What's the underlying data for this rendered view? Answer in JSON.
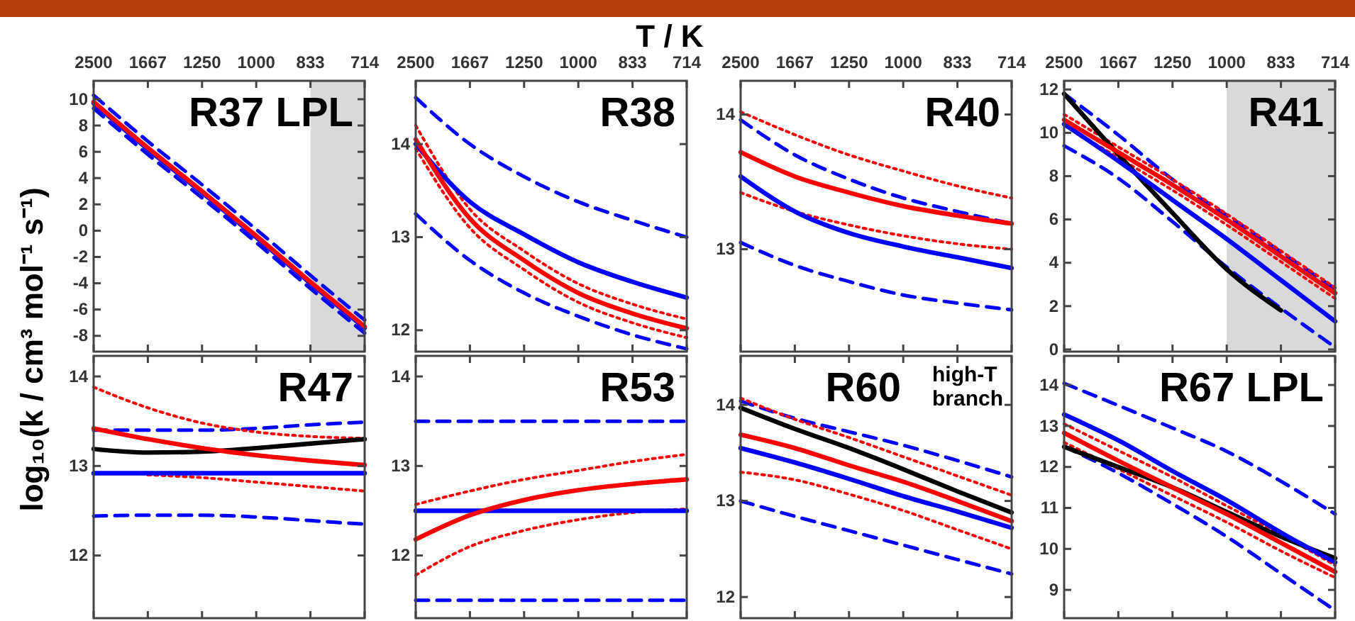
{
  "chart_data": [
    {
      "type": "line",
      "title": "R37 LPL",
      "ylabel": "log₁₀(k / cm³ mol⁻¹ s⁻¹)",
      "categories": [
        "2500",
        "1667",
        "1250",
        "1000",
        "833",
        "714"
      ],
      "ylim": [
        -9.2,
        11.4
      ],
      "yticks": [
        -8,
        -6,
        -4,
        -2,
        0,
        2,
        4,
        6,
        8,
        10
      ],
      "bands": [
        {
          "axis": "x",
          "from": "833",
          "to": "714",
          "color": "#d9d9d9"
        }
      ],
      "series": [
        {
          "color": "#0000ff",
          "line_style": "dashed",
          "values": [
            10.3,
            6.8,
            3.5,
            0.1,
            -3.4,
            -6.8
          ]
        },
        {
          "color": "#0000ff",
          "line_style": "dashed",
          "values": [
            9.3,
            5.8,
            2.5,
            -0.9,
            -4.4,
            -7.8
          ]
        },
        {
          "color": "#0000ff",
          "line_style": "solid",
          "values": [
            9.7,
            6.2,
            2.9,
            -0.5,
            -4.0,
            -7.4
          ]
        },
        {
          "color": "#ff0000",
          "line_style": "solid",
          "values": [
            9.8,
            6.3,
            3.0,
            -0.4,
            -3.9,
            -7.3
          ]
        }
      ]
    },
    {
      "type": "line",
      "title": "R38",
      "xlabel": "T / K",
      "categories": [
        "2500",
        "1667",
        "1250",
        "1000",
        "833",
        "714"
      ],
      "ylim": [
        11.77,
        14.68
      ],
      "yticks": [
        12,
        13,
        14
      ],
      "series": [
        {
          "color": "#0000ff",
          "line_style": "dashed",
          "values": [
            14.5,
            14.0,
            13.65,
            13.38,
            13.18,
            13.0
          ]
        },
        {
          "color": "#0000ff",
          "line_style": "dashed",
          "values": [
            13.25,
            12.75,
            12.4,
            12.15,
            11.95,
            11.8
          ]
        },
        {
          "color": "#ff0000",
          "line_style": "dotted",
          "values": [
            14.2,
            13.3,
            12.85,
            12.5,
            12.28,
            12.12
          ]
        },
        {
          "color": "#ff0000",
          "line_style": "dotted",
          "values": [
            13.95,
            13.1,
            12.65,
            12.3,
            12.08,
            11.92
          ]
        },
        {
          "color": "#0000ff",
          "line_style": "solid",
          "values": [
            14.0,
            13.38,
            13.03,
            12.73,
            12.52,
            12.35
          ]
        },
        {
          "color": "#ff0000",
          "line_style": "solid",
          "values": [
            14.05,
            13.2,
            12.75,
            12.4,
            12.18,
            12.02
          ]
        }
      ]
    },
    {
      "type": "line",
      "title": "R40",
      "categories": [
        "2500",
        "1667",
        "1250",
        "1000",
        "833",
        "714"
      ],
      "ylim": [
        12.24,
        14.25
      ],
      "yticks": [
        13,
        14
      ],
      "series": [
        {
          "color": "#0000ff",
          "line_style": "dashed",
          "values": [
            13.96,
            13.7,
            13.52,
            13.38,
            13.28,
            13.19
          ]
        },
        {
          "color": "#0000ff",
          "line_style": "dashed",
          "values": [
            13.05,
            12.88,
            12.76,
            12.66,
            12.6,
            12.55
          ]
        },
        {
          "color": "#ff0000",
          "line_style": "dotted",
          "values": [
            14.02,
            13.85,
            13.7,
            13.58,
            13.47,
            13.38
          ]
        },
        {
          "color": "#ff0000",
          "line_style": "dotted",
          "values": [
            13.42,
            13.28,
            13.18,
            13.1,
            13.04,
            13.0
          ]
        },
        {
          "color": "#0000ff",
          "line_style": "solid",
          "values": [
            13.54,
            13.28,
            13.12,
            13.02,
            12.94,
            12.86
          ]
        },
        {
          "color": "#ff0000",
          "line_style": "solid",
          "values": [
            13.72,
            13.54,
            13.42,
            13.32,
            13.25,
            13.19
          ]
        }
      ]
    },
    {
      "type": "line",
      "title": "R41",
      "categories": [
        "2500",
        "1667",
        "1250",
        "1000",
        "833",
        "714"
      ],
      "ylim": [
        -0.1,
        12.4
      ],
      "yticks": [
        0,
        2,
        4,
        6,
        8,
        10,
        12
      ],
      "bands": [
        {
          "axis": "x",
          "from": "1000",
          "to": "714",
          "color": "#d9d9d9"
        }
      ],
      "series": [
        {
          "color": "#0000ff",
          "line_style": "dashed",
          "values": [
            11.8,
            9.9,
            7.85,
            6.2,
            4.5,
            2.8
          ]
        },
        {
          "color": "#0000ff",
          "line_style": "dashed",
          "values": [
            9.4,
            7.9,
            5.9,
            3.8,
            1.9,
            0.1
          ]
        },
        {
          "color": "#ff0000",
          "line_style": "dotted",
          "values": [
            10.85,
            9.35,
            7.85,
            6.25,
            4.55,
            2.85
          ]
        },
        {
          "color": "#ff0000",
          "line_style": "dotted",
          "values": [
            10.35,
            8.85,
            7.35,
            5.75,
            4.05,
            2.35
          ]
        },
        {
          "color": "#000000",
          "line_style": "solid",
          "values": [
            11.8,
            9.0,
            6.3,
            3.7,
            1.8,
            null
          ]
        },
        {
          "color": "#0000ff",
          "line_style": "solid",
          "values": [
            10.4,
            8.7,
            6.9,
            5.1,
            3.2,
            1.3
          ]
        },
        {
          "color": "#ff0000",
          "line_style": "solid",
          "values": [
            10.6,
            9.1,
            7.6,
            6.0,
            4.3,
            2.6
          ]
        }
      ]
    },
    {
      "type": "line",
      "title": "R47",
      "tick_labels": "y",
      "categories": [
        "2500",
        "1667",
        "1250",
        "1000",
        "833",
        "714"
      ],
      "ylim": [
        11.3,
        14.23
      ],
      "yticks": [
        12,
        13,
        14
      ],
      "series": [
        {
          "color": "#0000ff",
          "line_style": "dashed",
          "values": [
            13.4,
            13.4,
            13.4,
            13.42,
            13.46,
            13.49
          ]
        },
        {
          "color": "#0000ff",
          "line_style": "dashed",
          "values": [
            12.44,
            12.45,
            12.45,
            12.43,
            12.39,
            12.35
          ]
        },
        {
          "color": "#ff0000",
          "line_style": "dotted",
          "values": [
            13.88,
            13.65,
            13.48,
            13.38,
            13.33,
            13.31
          ]
        },
        {
          "color": "#ff0000",
          "line_style": "dotted",
          "values": [
            null,
            12.9,
            12.87,
            12.82,
            12.77,
            12.72
          ]
        },
        {
          "color": "#000000",
          "line_style": "solid",
          "values": [
            13.19,
            13.15,
            13.16,
            13.2,
            13.25,
            13.3
          ]
        },
        {
          "color": "#0000ff",
          "line_style": "solid",
          "values": [
            12.92,
            12.92,
            12.92,
            12.92,
            12.92,
            12.92
          ]
        },
        {
          "color": "#ff0000",
          "line_style": "solid",
          "values": [
            13.42,
            13.3,
            13.2,
            13.12,
            13.06,
            13.01
          ]
        }
      ]
    },
    {
      "type": "line",
      "title": "R53",
      "tick_labels": "y",
      "categories": [
        "2500",
        "1667",
        "1250",
        "1000",
        "833",
        "714"
      ],
      "ylim": [
        11.3,
        14.23
      ],
      "yticks": [
        12,
        13,
        14
      ],
      "series": [
        {
          "color": "#0000ff",
          "line_style": "dashed",
          "values": [
            13.5,
            13.5,
            13.5,
            13.5,
            13.5,
            13.5
          ]
        },
        {
          "color": "#0000ff",
          "line_style": "dashed",
          "values": [
            11.5,
            11.5,
            11.5,
            11.5,
            11.5,
            11.5
          ]
        },
        {
          "color": "#ff0000",
          "line_style": "dotted",
          "values": [
            12.57,
            12.72,
            12.85,
            12.95,
            13.05,
            13.13
          ]
        },
        {
          "color": "#ff0000",
          "line_style": "dotted",
          "values": [
            11.78,
            12.1,
            12.28,
            12.4,
            12.48,
            12.52
          ]
        },
        {
          "color": "#0000ff",
          "line_style": "solid",
          "values": [
            12.5,
            12.5,
            12.5,
            12.5,
            12.5,
            12.5
          ]
        },
        {
          "color": "#ff0000",
          "line_style": "solid",
          "values": [
            12.18,
            12.45,
            12.62,
            12.73,
            12.8,
            12.85
          ]
        }
      ]
    },
    {
      "type": "line",
      "title": "R60",
      "annotations": [
        "high-T branch"
      ],
      "tick_labels": "y",
      "categories": [
        "2500",
        "1667",
        "1250",
        "1000",
        "833",
        "714"
      ],
      "ylim": [
        11.78,
        14.51
      ],
      "yticks": [
        12,
        13,
        14
      ],
      "series": [
        {
          "color": "#0000ff",
          "line_style": "dashed",
          "values": [
            14.04,
            13.86,
            13.72,
            13.58,
            13.42,
            13.25
          ]
        },
        {
          "color": "#0000ff",
          "line_style": "dashed",
          "values": [
            13.0,
            12.84,
            12.69,
            12.54,
            12.39,
            12.24
          ]
        },
        {
          "color": "#ff0000",
          "line_style": "dotted",
          "values": [
            14.07,
            13.85,
            13.66,
            13.46,
            13.26,
            13.06
          ]
        },
        {
          "color": "#ff0000",
          "line_style": "dotted",
          "values": [
            13.3,
            13.22,
            13.07,
            12.9,
            12.7,
            12.5
          ]
        },
        {
          "color": "#000000",
          "line_style": "solid",
          "values": [
            13.97,
            13.75,
            13.55,
            13.33,
            13.1,
            12.88
          ]
        },
        {
          "color": "#0000ff",
          "line_style": "solid",
          "values": [
            13.55,
            13.4,
            13.23,
            13.05,
            12.89,
            12.72
          ]
        },
        {
          "color": "#ff0000",
          "line_style": "solid",
          "values": [
            13.69,
            13.55,
            13.37,
            13.2,
            13.0,
            12.79
          ]
        }
      ]
    },
    {
      "type": "line",
      "title": "R67 LPL",
      "tick_labels": "y",
      "categories": [
        "2500",
        "1667",
        "1250",
        "1000",
        "833",
        "714"
      ],
      "ylim": [
        8.31,
        14.71
      ],
      "yticks": [
        9,
        10,
        11,
        12,
        13,
        14
      ],
      "series": [
        {
          "color": "#0000ff",
          "line_style": "dashed",
          "values": [
            14.04,
            13.5,
            12.95,
            12.38,
            11.65,
            10.85
          ]
        },
        {
          "color": "#0000ff",
          "line_style": "dashed",
          "values": [
            12.5,
            11.85,
            11.1,
            10.3,
            9.4,
            8.5
          ]
        },
        {
          "color": "#ff0000",
          "line_style": "dotted",
          "values": [
            13.05,
            12.4,
            11.75,
            11.05,
            10.35,
            9.6
          ]
        },
        {
          "color": "#ff0000",
          "line_style": "dotted",
          "values": [
            12.6,
            11.95,
            11.3,
            10.65,
            9.95,
            9.3
          ]
        },
        {
          "color": "#000000",
          "line_style": "solid",
          "values": [
            12.49,
            12.0,
            11.5,
            10.9,
            10.3,
            9.77
          ]
        },
        {
          "color": "#0000ff",
          "line_style": "solid",
          "values": [
            13.28,
            12.65,
            11.9,
            11.19,
            10.4,
            9.67
          ]
        },
        {
          "color": "#ff0000",
          "line_style": "solid",
          "values": [
            12.83,
            12.15,
            11.5,
            10.85,
            10.15,
            9.44
          ]
        }
      ]
    }
  ]
}
